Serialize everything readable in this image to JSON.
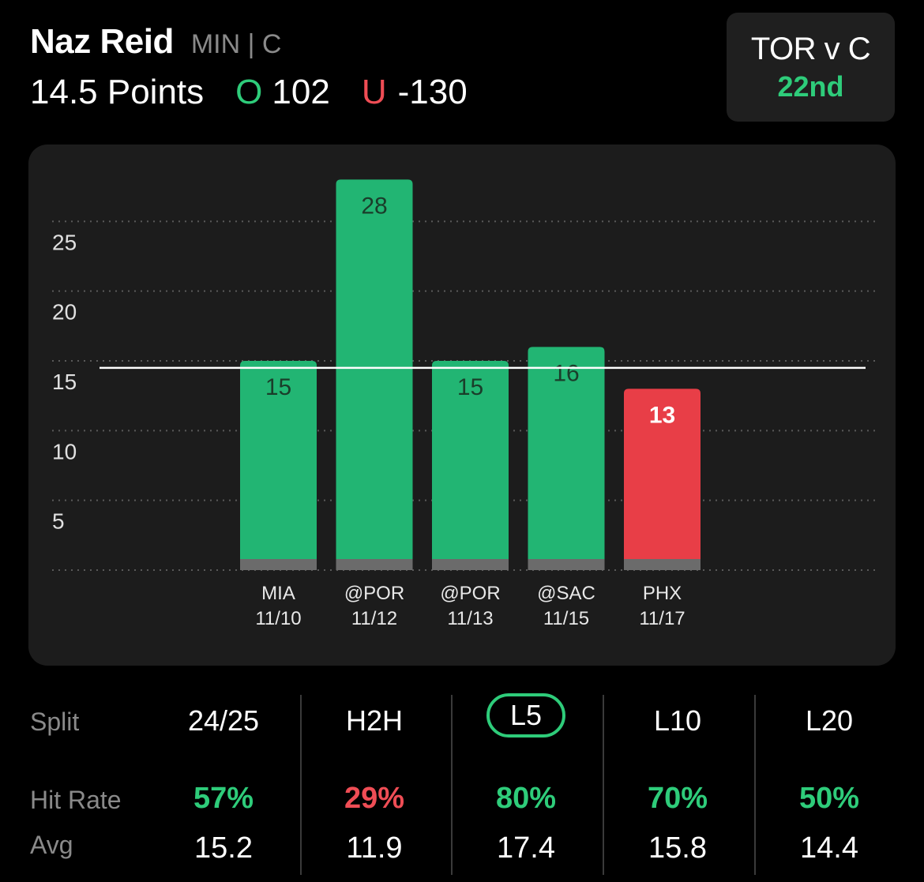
{
  "player": {
    "name": "Naz Reid",
    "team_pos": "MIN | C"
  },
  "prop": {
    "line": "14.5 Points",
    "over_mark": "O",
    "over_odds": "102",
    "under_mark": "U",
    "under_odds": "-130"
  },
  "matchup": {
    "label": "TOR v C",
    "rank": "22nd"
  },
  "colors": {
    "green": "#2ecc7a",
    "red": "#ef4d55",
    "bar_green": "#22b573",
    "bar_red": "#e83e47"
  },
  "chart_data": {
    "type": "bar",
    "categories": [
      "MIA 11/10",
      "@POR 11/12",
      "@POR 11/13",
      "@SAC 11/15",
      "PHX 11/17"
    ],
    "category_lines": [
      [
        "MIA",
        "11/10"
      ],
      [
        "@POR",
        "11/12"
      ],
      [
        "@POR",
        "11/13"
      ],
      [
        "@SAC",
        "11/15"
      ],
      [
        "PHX",
        "11/17"
      ]
    ],
    "values": [
      15,
      28,
      15,
      16,
      13
    ],
    "hit": [
      true,
      true,
      true,
      true,
      false
    ],
    "yticks": [
      5,
      10,
      15,
      20,
      25
    ],
    "ylim": [
      0,
      30
    ],
    "reference_line": 14.5,
    "grid": "dotted horizontal"
  },
  "splits": {
    "labels": {
      "split": "Split",
      "hit_rate": "Hit Rate",
      "avg": "Avg"
    },
    "columns": [
      {
        "label": "24/25",
        "hit_rate": "57%",
        "hit_color": "green",
        "avg": "15.2",
        "active": false
      },
      {
        "label": "H2H",
        "hit_rate": "29%",
        "hit_color": "red",
        "avg": "11.9",
        "active": false
      },
      {
        "label": "L5",
        "hit_rate": "80%",
        "hit_color": "green",
        "avg": "17.4",
        "active": true
      },
      {
        "label": "L10",
        "hit_rate": "70%",
        "hit_color": "green",
        "avg": "15.8",
        "active": false
      },
      {
        "label": "L20",
        "hit_rate": "50%",
        "hit_color": "green",
        "avg": "14.4",
        "active": false
      }
    ]
  }
}
